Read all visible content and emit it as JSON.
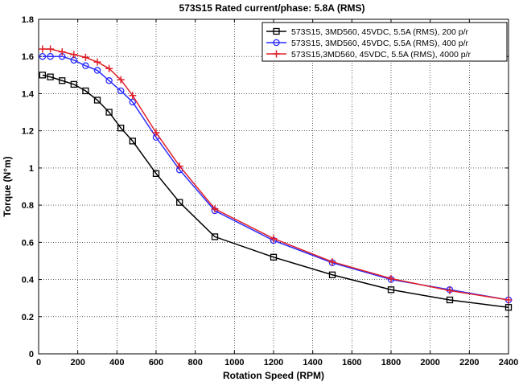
{
  "chart_data": {
    "type": "line",
    "title": "573S15 Rated current/phase: 5.8A (RMS)",
    "xlabel": "Rotation Speed (RPM)",
    "ylabel": "Torque (N°m)",
    "xlim": [
      0,
      2400
    ],
    "ylim": [
      0,
      1.8
    ],
    "xticks": [
      0,
      200,
      400,
      600,
      800,
      1000,
      1200,
      1400,
      1600,
      1800,
      2000,
      2200,
      2400
    ],
    "yticks": [
      0,
      0.2,
      0.4,
      0.6,
      0.8,
      1,
      1.2,
      1.4,
      1.6,
      1.8
    ],
    "xtick_labels": [
      "0",
      "200",
      "400",
      "600",
      "800",
      "1000",
      "1200",
      "1400",
      "1600",
      "1800",
      "2000",
      "2200",
      "2400"
    ],
    "ytick_labels": [
      "0",
      "0.2",
      "0.4",
      "0.6",
      "0.8",
      "1",
      "1.2",
      "1.4",
      "1.6",
      "1.8"
    ],
    "grid": "dotted",
    "legend_position": "top-right",
    "series": [
      {
        "name": "573S15, 3MD560, 45VDC, 5.5A (RMS), 200 p/r",
        "color": "#000000",
        "marker": "square",
        "x": [
          20,
          60,
          120,
          180,
          240,
          300,
          360,
          420,
          480,
          600,
          720,
          900,
          1200,
          1500,
          1800,
          2100,
          2400
        ],
        "y": [
          1.5,
          1.49,
          1.47,
          1.45,
          1.415,
          1.365,
          1.3,
          1.215,
          1.145,
          0.97,
          0.815,
          0.63,
          0.52,
          0.425,
          0.345,
          0.29,
          0.25
        ]
      },
      {
        "name": "573S15, 3MD560, 45VDC, 5.5A (RMS), 400 p/r",
        "color": "#2a2aff",
        "marker": "circle",
        "x": [
          20,
          60,
          120,
          180,
          240,
          300,
          360,
          420,
          480,
          600,
          720,
          900,
          1200,
          1500,
          1800,
          2100,
          2400
        ],
        "y": [
          1.6,
          1.6,
          1.6,
          1.58,
          1.55,
          1.525,
          1.47,
          1.415,
          1.355,
          1.165,
          0.99,
          0.77,
          0.61,
          0.49,
          0.4,
          0.345,
          0.29
        ]
      },
      {
        "name": "573S15,3MD560, 45VDC, 5.5A (RMS), 4000 p/r",
        "color": "#e0202a",
        "marker": "plus",
        "x": [
          20,
          60,
          120,
          180,
          240,
          300,
          360,
          420,
          480,
          600,
          720,
          900,
          1200,
          1500,
          1800,
          2100,
          2400
        ],
        "y": [
          1.64,
          1.64,
          1.625,
          1.61,
          1.595,
          1.57,
          1.535,
          1.475,
          1.39,
          1.19,
          1.01,
          0.78,
          0.62,
          0.495,
          0.405,
          0.34,
          0.29
        ]
      }
    ]
  }
}
